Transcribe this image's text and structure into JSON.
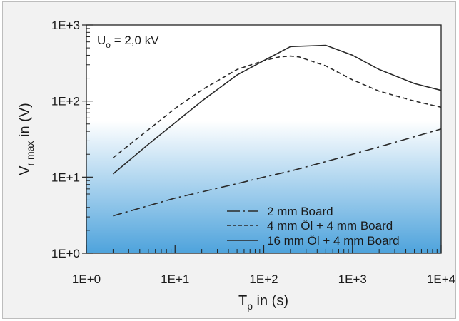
{
  "chart_data": {
    "type": "line",
    "annotation": {
      "base": "U",
      "sub": "o",
      "rest": " = 2,0 kV"
    },
    "xlabel": {
      "base": "T",
      "sub": "p",
      "rest": " in (s)"
    },
    "ylabel": {
      "base": "V",
      "sub": "r max",
      "rest": " in (V)"
    },
    "x_scale": "log",
    "y_scale": "log",
    "xlim": [
      1,
      10000
    ],
    "ylim": [
      1,
      1000
    ],
    "x_ticks": [
      {
        "value": 1,
        "label": "1E+0"
      },
      {
        "value": 10,
        "label": "1E+1"
      },
      {
        "value": 100,
        "label": "1E+2"
      },
      {
        "value": 1000,
        "label": "1E+3"
      },
      {
        "value": 10000,
        "label": "1E+4"
      }
    ],
    "y_ticks": [
      {
        "value": 1,
        "label": "1E+0"
      },
      {
        "value": 10,
        "label": "1E+1"
      },
      {
        "value": 100,
        "label": "1E+2"
      },
      {
        "value": 1000,
        "label": "1E+3"
      }
    ],
    "grid": false,
    "legend_position": "bottom-right",
    "background_gradient": [
      "#ffffff",
      "#4ea3dc"
    ],
    "series": [
      {
        "name": "2 mm Board",
        "style": "dashdot",
        "x": [
          2,
          10,
          50,
          100,
          200,
          500,
          1000,
          2000,
          5000,
          10000
        ],
        "y": [
          3.1,
          5.3,
          8.2,
          10,
          12,
          16,
          20,
          25,
          34,
          43
        ]
      },
      {
        "name": "4 mm Öl + 4 mm Board",
        "style": "dashed",
        "x": [
          2,
          5,
          10,
          20,
          50,
          100,
          150,
          200,
          250,
          500,
          1000,
          2000,
          5000,
          10000
        ],
        "y": [
          18,
          42,
          80,
          140,
          260,
          340,
          380,
          390,
          380,
          290,
          190,
          135,
          100,
          83
        ]
      },
      {
        "name": "16 mm Öl + 4 mm Board",
        "style": "solid",
        "x": [
          2,
          5,
          10,
          20,
          50,
          100,
          200,
          500,
          1000,
          2000,
          5000,
          10000
        ],
        "y": [
          11,
          27,
          52,
          100,
          220,
          340,
          520,
          540,
          400,
          260,
          170,
          138
        ]
      }
    ]
  }
}
